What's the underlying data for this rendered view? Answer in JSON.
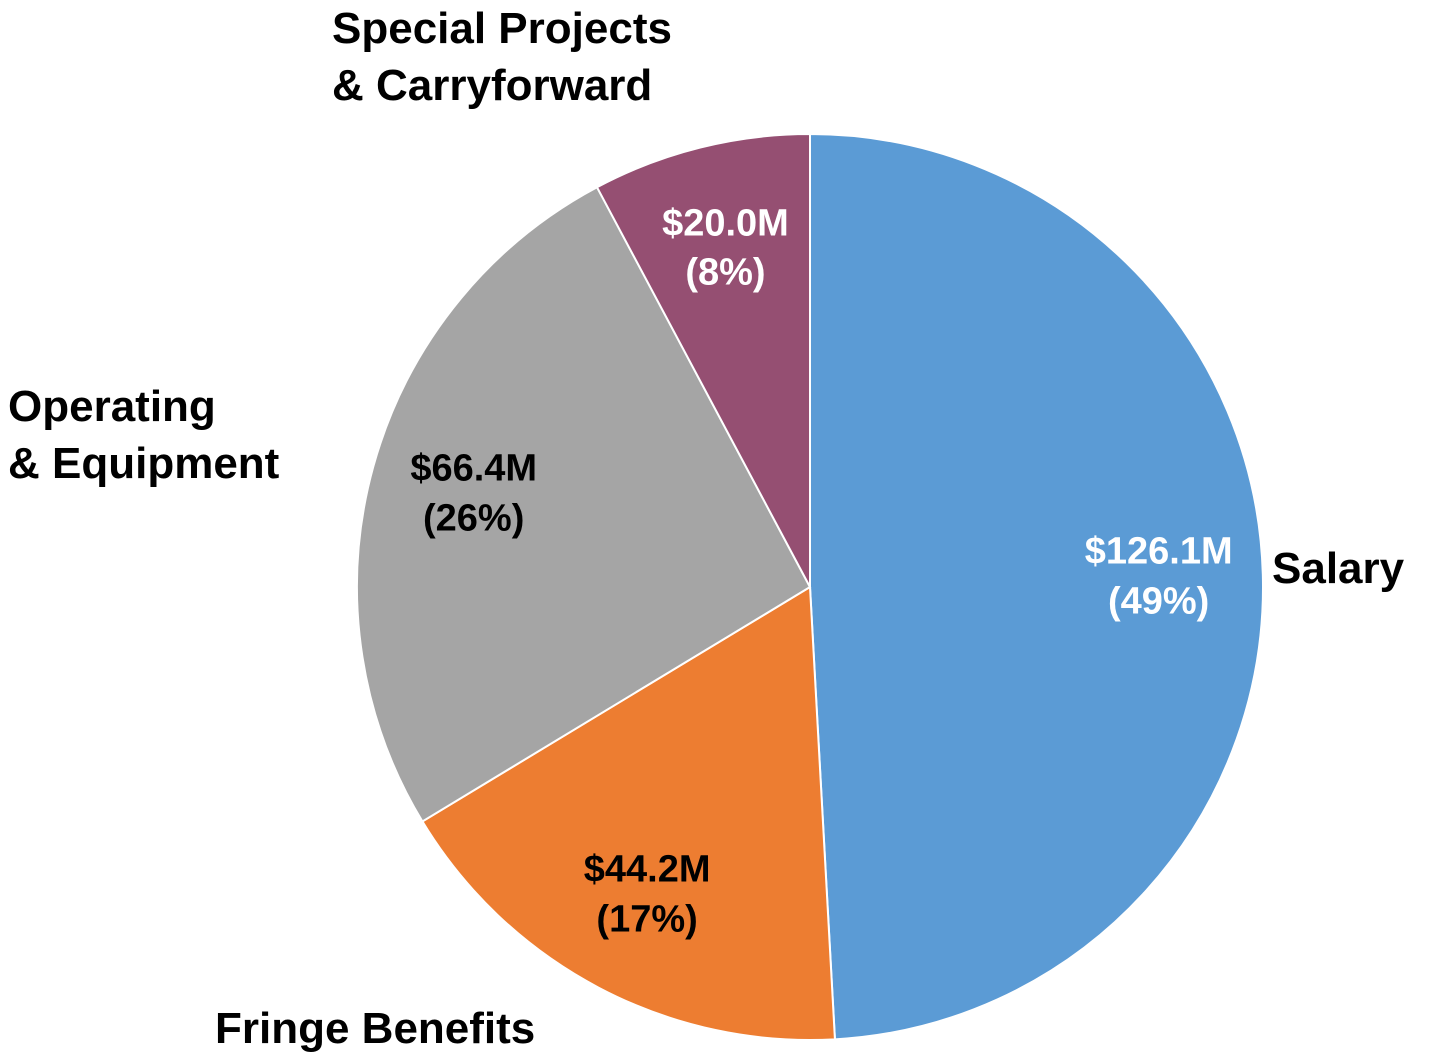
{
  "chart_data": {
    "type": "pie",
    "categories": [
      "Salary",
      "Fringe Benefits",
      "Operating\n& Equipment",
      "Special Projects\n& Carryforward"
    ],
    "values": [
      126.1,
      44.2,
      66.4,
      20.0
    ],
    "value_labels": [
      "$126.1M\n(49%)",
      "$44.2M\n(17%)",
      "$66.4M\n(26%)",
      "$20.0M\n(8%)"
    ],
    "colors": [
      "#5b9bd5",
      "#ed7d31",
      "#a5a5a5",
      "#954f72"
    ],
    "label_colors": [
      "#ffffff",
      "#000000",
      "#000000",
      "#ffffff"
    ]
  }
}
